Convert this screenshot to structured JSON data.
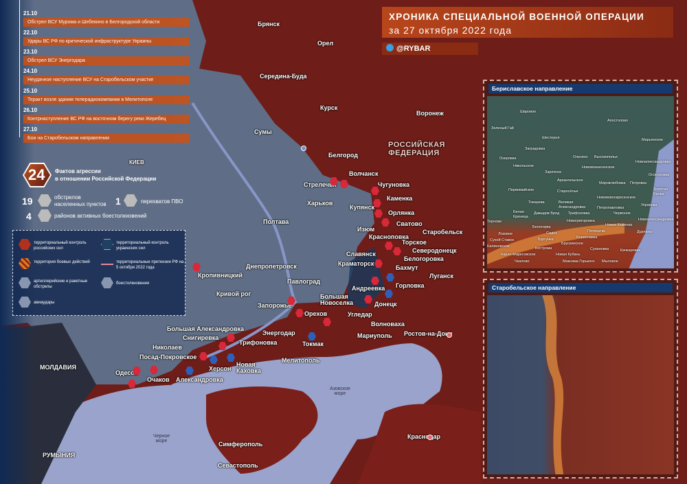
{
  "header": {
    "title": "ХРОНИКА СПЕЦИАЛЬНОЙ ВОЕННОЙ ОПЕРАЦИИ",
    "subtitle": "за 27 октября 2022 года",
    "brand": "@RYBAR",
    "brand_icon": "telegram-icon"
  },
  "colors": {
    "russian_control": "#7a1f1a",
    "ukrainian_control": "#5f6e86",
    "accent": "#c2521e",
    "sea": "#9aa3cc",
    "panel": "#163a6e"
  },
  "timeline": [
    {
      "date": "21.10",
      "event": "Обстрел ВСУ Мурома и Шебекино в Белгородской области"
    },
    {
      "date": "22.10",
      "event": "Удары ВС РФ по критической инфраструктуре Украины"
    },
    {
      "date": "23.10",
      "event": "Обстрел ВСУ Энергодара"
    },
    {
      "date": "24.10",
      "event": "Неудачное наступление ВСУ на Старобельском участке"
    },
    {
      "date": "25.10",
      "event": "Теракт возле здания телерадиокомпании в Мелитополе"
    },
    {
      "date": "26.10",
      "event": "Контрнаступление ВС РФ на восточном берегу реки Жеребец"
    },
    {
      "date": "27.10",
      "event": "Бои на Старобельском направлении"
    }
  ],
  "stats": {
    "total": "24",
    "total_label1": "Фактов агрессии",
    "total_label2": "в отношении Российской Федерации",
    "shelling": "19",
    "shelling_label1": "обстрелов",
    "shelling_label2": "населенных пунктов",
    "air_defense": "1",
    "air_defense_label": "перехватов ПВО",
    "clashes": "4",
    "clashes_label": "районов активных боестолкновений"
  },
  "legend": {
    "ru_control": "территориальный контроль российских сил",
    "ua_control": "территориальный контроль украинских сил",
    "combat": "территория боевых действий",
    "claims": "территориальные претензии РФ на 5 октября 2022 года",
    "shelling": "артиллерийские и ракетные обстрелы",
    "clashes": "боестолкновения",
    "airstrikes": "авиаудары"
  },
  "map_labels": {
    "russia": "РОССИЙСКАЯ ФЕДЕРАЦИЯ",
    "moldova": "МОЛДАВИЯ",
    "romania": "РУМЫНИЯ",
    "azov": "Азовское море",
    "black_sea": "Черное море"
  },
  "cities": [
    "Брянск",
    "Орел",
    "Середина-Буда",
    "Курск",
    "Воронеж",
    "Сумы",
    "КИЕВ",
    "Белгород",
    "Волчанск",
    "Стрелечья",
    "Харьков",
    "Чугуновка",
    "Каменка",
    "Купянск",
    "Орлянка",
    "Полтава",
    "Изюм",
    "Сватово",
    "Старобельск",
    "Красноповка",
    "Торское",
    "Северодонецк",
    "Славянск",
    "Белогоровка",
    "Краматорск",
    "Бахмут",
    "Днепропетровск",
    "Кропивницкий",
    "Павлоград",
    "Горловка",
    "Луганск",
    "Андреевка",
    "Кривой рог",
    "Запорожье",
    "Большая Новоселка",
    "Донецк",
    "Орехов",
    "Угледар",
    "Волноваха",
    "Энергодар",
    "Большая Александровка",
    "Снигиревка",
    "Трифоновка",
    "Николаев",
    "Токмак",
    "Мариуполь",
    "Ростов-на-Дону",
    "Посад-Покровское",
    "Херсон",
    "Новая Каховка",
    "Мелитополь",
    "Одесса",
    "Очаков",
    "Александровка",
    "Симферополь",
    "Краснодар",
    "Севастополь"
  ],
  "insets": [
    {
      "title": "Бериславское направление",
      "labels": [
        "Шаровое",
        "Апостолово",
        "Зеленый Гай",
        "Шестерня",
        "Заградовка",
        "Марьянское",
        "Озеровка",
        "Никольское",
        "Ольгино",
        "Высокополье",
        "Новоалександровка",
        "Заречное",
        "Нововознесенское",
        "Осокоровка",
        "Архангельское",
        "Мировлюбовка",
        "Петровка",
        "Первомайское",
        "Старосёлье",
        "Новововоскресенское",
        "Золотая Балка",
        "Токарева",
        "Великая Александровка",
        "Украинка",
        "Петропавловка",
        "Новоалександровка",
        "Белая Криница",
        "Давыдов Брод",
        "Трифоновка",
        "Червоное",
        "Новогригоровка",
        "Новая Каменка",
        "Белогорка",
        "Дудчаны",
        "Садок",
        "Бургунка",
        "Брускинское",
        "Бериславка",
        "Пятихатки",
        "Кострома",
        "Сухановка",
        "Новая Кубань",
        "Качкаровка",
        "Карло-Марксовское",
        "Чкалово",
        "Максима Горького",
        "Мыловое",
        "Тернове",
        "Лозовое",
        "Сухой Ставок",
        "Калиновское"
      ]
    },
    {
      "title": "Старобельское направление"
    }
  ]
}
